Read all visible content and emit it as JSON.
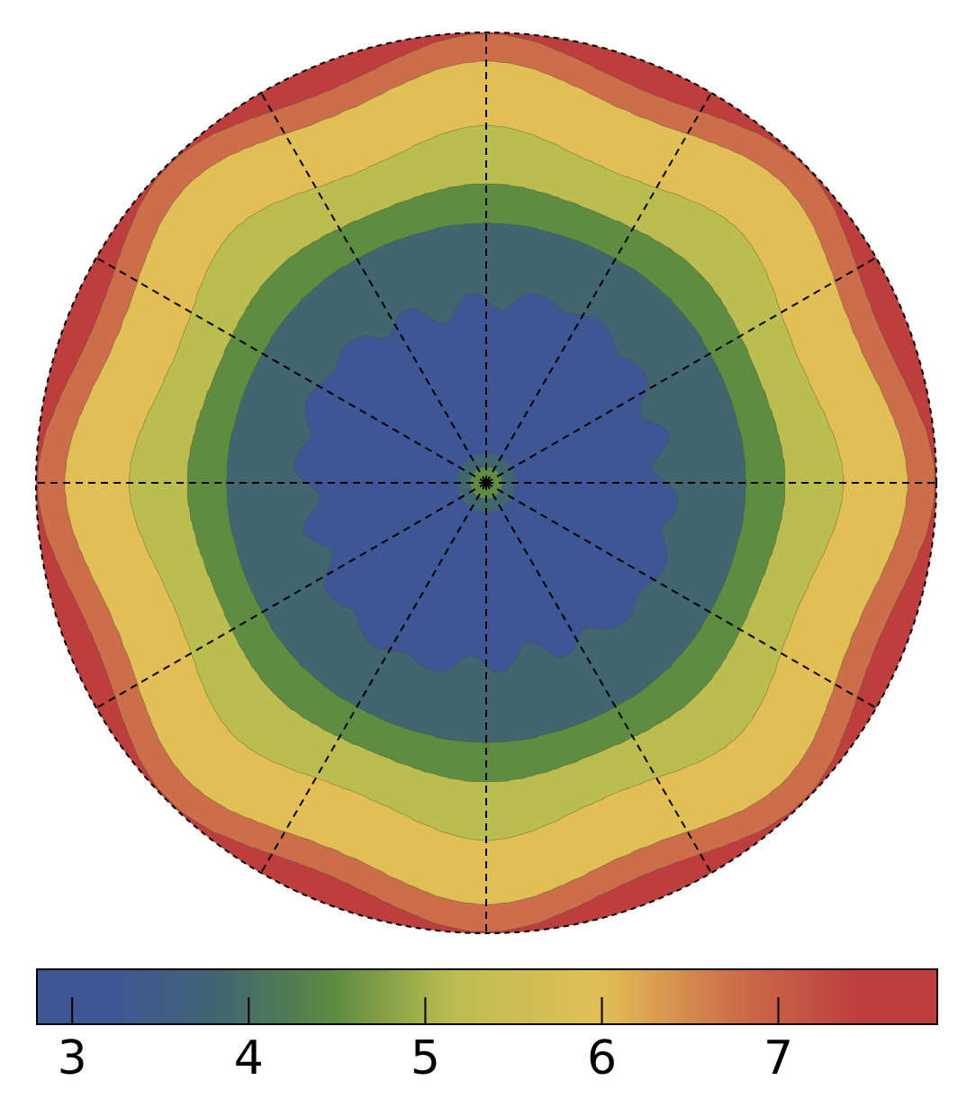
{
  "chart_data": {
    "type": "heatmap",
    "projection": "polar",
    "title": "",
    "grid": true,
    "radial_lines": 12,
    "colorbar": {
      "orientation": "horizontal",
      "placement": "bottom",
      "range": [
        2.8,
        7.9
      ],
      "ticks": [
        3,
        4,
        5,
        6,
        7
      ],
      "tick_labels": [
        "3",
        "4",
        "5",
        "6",
        "7"
      ]
    },
    "levels": [
      {
        "range": [
          3.0,
          3.5
        ],
        "color": "#3f5694"
      },
      {
        "range": [
          3.5,
          4.2
        ],
        "color": "#426670"
      },
      {
        "range": [
          4.2,
          4.8
        ],
        "color": "#5e8c40"
      },
      {
        "range": [
          4.8,
          5.5
        ],
        "color": "#bcbd4f"
      },
      {
        "range": [
          5.5,
          6.5
        ],
        "color": "#e2bf54"
      },
      {
        "range": [
          6.5,
          7.0
        ],
        "color": "#cc6e4a"
      },
      {
        "range": [
          7.0,
          7.9
        ],
        "color": "#bd3e3d"
      }
    ],
    "radial_profile": [
      {
        "r": 0.0,
        "value": 4.6
      },
      {
        "r": 0.03,
        "value": 4.6
      },
      {
        "r": 0.06,
        "value": 4.1
      },
      {
        "r": 0.09,
        "value": 3.4
      },
      {
        "r": 0.3,
        "value": 3.3
      },
      {
        "r": 0.42,
        "value": 3.5
      },
      {
        "r": 0.56,
        "value": 4.1
      },
      {
        "r": 0.62,
        "value": 4.5
      },
      {
        "r": 0.68,
        "value": 5.0
      },
      {
        "r": 0.82,
        "value": 5.8
      },
      {
        "r": 0.92,
        "value": 6.6
      },
      {
        "r": 1.0,
        "value": 7.3
      }
    ],
    "angular_variation": {
      "lobes": 8,
      "amplitude": 0.55,
      "phase_deg": 0,
      "applies_beyond_r": 0.55
    }
  }
}
